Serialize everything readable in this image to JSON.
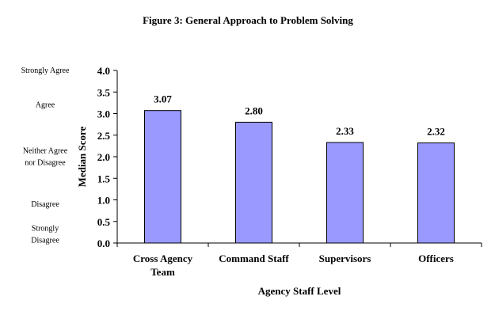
{
  "chart_data": {
    "type": "bar",
    "title": "Figure 3: General Approach to Problem Solving",
    "xlabel": "Agency Staff Level",
    "ylabel": "Median Score",
    "categories": [
      "Cross Agency Team",
      "Command Staff",
      "Supervisors",
      "Officers"
    ],
    "category_lines": [
      [
        "Cross Agency",
        "Team"
      ],
      [
        "Command Staff"
      ],
      [
        "Supervisors"
      ],
      [
        "Officers"
      ]
    ],
    "values": [
      3.07,
      2.8,
      2.33,
      2.32
    ],
    "data_labels": [
      "3.07",
      "2.80",
      "2.33",
      "2.32"
    ],
    "ylim": [
      0,
      4
    ],
    "yticks": [
      "0.0",
      "0.5",
      "1.0",
      "1.5",
      "2.0",
      "2.5",
      "3.0",
      "3.5",
      "4.0"
    ],
    "grid": false,
    "legend": "none",
    "bar_color": "#9999ff",
    "scale_labels": [
      {
        "lines": [
          "Strongly Agree"
        ],
        "value": 4.0
      },
      {
        "lines": [
          "Agree"
        ],
        "value": 3.2
      },
      {
        "lines": [
          "Neither Agree",
          "nor Disagree"
        ],
        "value": 2.0
      },
      {
        "lines": [
          "Disagree"
        ],
        "value": 0.9
      },
      {
        "lines": [
          "Strongly",
          "Disagree"
        ],
        "value": 0.2
      }
    ]
  }
}
